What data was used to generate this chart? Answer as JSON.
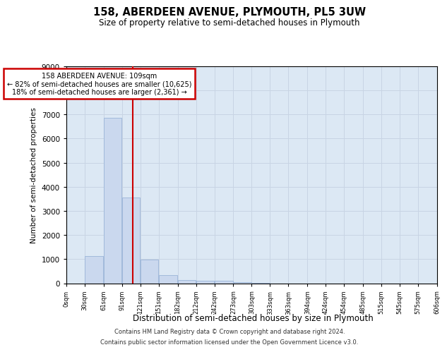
{
  "title": "158, ABERDEEN AVENUE, PLYMOUTH, PL5 3UW",
  "subtitle": "Size of property relative to semi-detached houses in Plymouth",
  "xlabel": "Distribution of semi-detached houses by size in Plymouth",
  "ylabel": "Number of semi-detached properties",
  "footnote1": "Contains HM Land Registry data © Crown copyright and database right 2024.",
  "footnote2": "Contains public sector information licensed under the Open Government Licence v3.0.",
  "annotation_title": "158 ABERDEEN AVENUE: 109sqm",
  "annotation_line1": "← 82% of semi-detached houses are smaller (10,625)",
  "annotation_line2": "18% of semi-detached houses are larger (2,361) →",
  "property_size": 109,
  "bar_left_edges": [
    0,
    30,
    61,
    91,
    121,
    151,
    182,
    212,
    242,
    273,
    303,
    333,
    363,
    394,
    424,
    454,
    485,
    515,
    545,
    575
  ],
  "bar_widths": [
    30,
    31,
    30,
    30,
    30,
    31,
    30,
    30,
    31,
    30,
    30,
    30,
    31,
    30,
    30,
    31,
    30,
    30,
    30,
    31
  ],
  "bar_heights": [
    0,
    1130,
    6870,
    3560,
    970,
    335,
    145,
    105,
    100,
    50,
    20,
    0,
    0,
    0,
    0,
    0,
    0,
    0,
    0,
    0
  ],
  "tick_positions": [
    0,
    30,
    61,
    91,
    121,
    151,
    182,
    212,
    242,
    273,
    303,
    333,
    363,
    394,
    424,
    454,
    485,
    515,
    545,
    575,
    606
  ],
  "tick_labels": [
    "0sqm",
    "30sqm",
    "61sqm",
    "91sqm",
    "121sqm",
    "151sqm",
    "182sqm",
    "212sqm",
    "242sqm",
    "273sqm",
    "303sqm",
    "333sqm",
    "363sqm",
    "394sqm",
    "424sqm",
    "454sqm",
    "485sqm",
    "515sqm",
    "545sqm",
    "575sqm",
    "606sqm"
  ],
  "bar_color": "#cad8ee",
  "bar_edge_color": "#9ab4d8",
  "grid_color": "#c8d4e4",
  "background_color": "#dce8f4",
  "redline_color": "#cc0000",
  "box_edge_color": "#cc0000",
  "ylim_max": 9000,
  "yticks": [
    0,
    1000,
    2000,
    3000,
    4000,
    5000,
    6000,
    7000,
    8000,
    9000
  ]
}
